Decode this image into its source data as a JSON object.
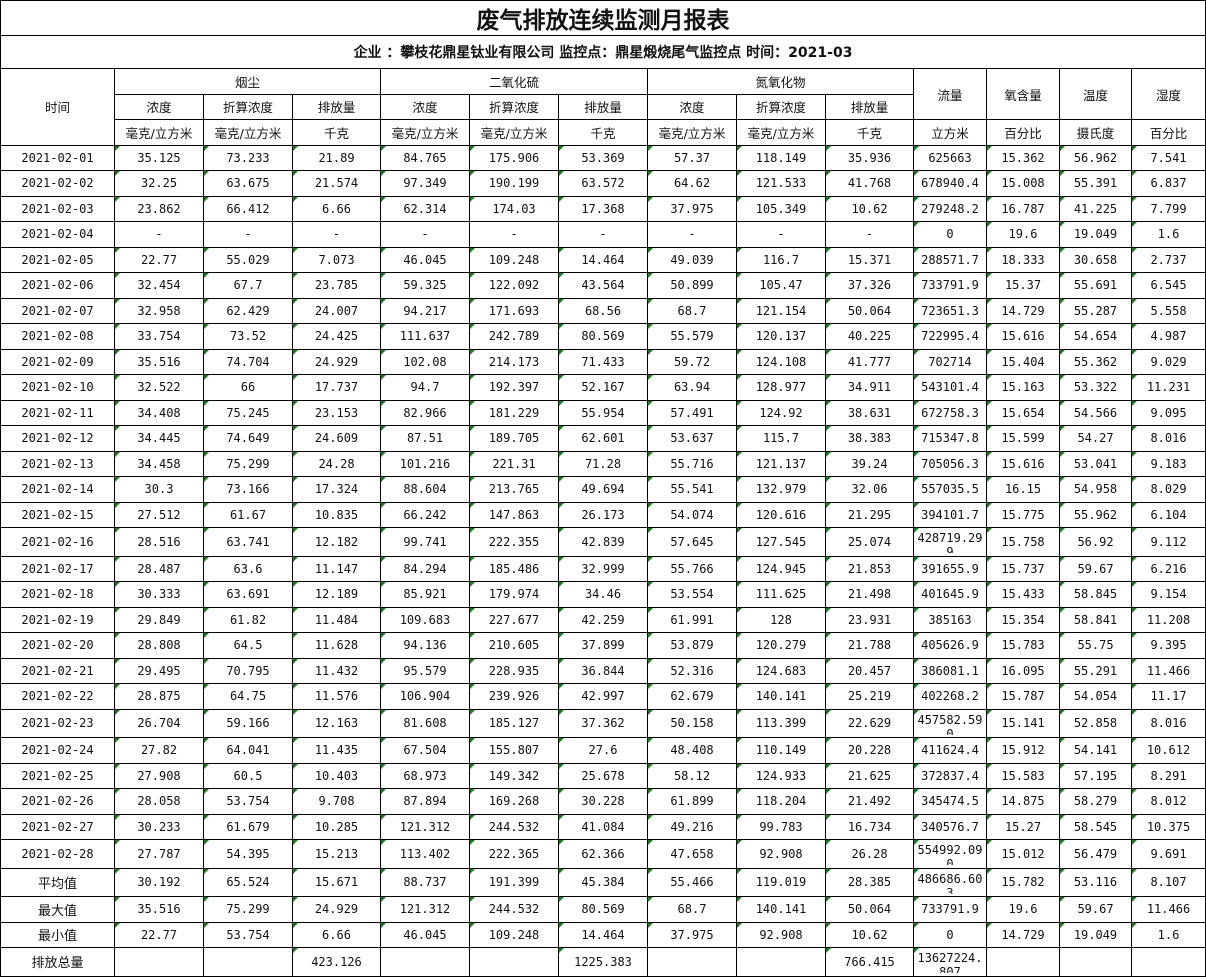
{
  "title": "废气排放连续监测月报表",
  "subtitle": "企业 ：攀枝花鼎星钛业有限公司 监控点：鼎星煅烧尾气监控点 时间：2021-03",
  "header": {
    "time": "时间",
    "groups": [
      "烟尘",
      "二氧化硫",
      "氮氧化物"
    ],
    "sub_cols": [
      "浓度",
      "折算浓度",
      "排放量"
    ],
    "units_conc": "毫克/立方米",
    "units_mass": "千克",
    "flow": "流量",
    "flow_unit": "立方米",
    "oxygen": "氧含量",
    "oxygen_unit": "百分比",
    "temperature": "温度",
    "temperature_unit": "摄氏度",
    "humidity": "湿度",
    "humidity_unit": "百分比"
  },
  "rows": [
    [
      "2021-02-01",
      "35.125",
      "73.233",
      "21.89",
      "84.765",
      "175.906",
      "53.369",
      "57.37",
      "118.149",
      "35.936",
      "625663",
      "15.362",
      "56.962",
      "7.541"
    ],
    [
      "2021-02-02",
      "32.25",
      "63.675",
      "21.574",
      "97.349",
      "190.199",
      "63.572",
      "64.62",
      "121.533",
      "41.768",
      "678940.4",
      "15.008",
      "55.391",
      "6.837"
    ],
    [
      "2021-02-03",
      "23.862",
      "66.412",
      "6.66",
      "62.314",
      "174.03",
      "17.368",
      "37.975",
      "105.349",
      "10.62",
      "279248.2",
      "16.787",
      "41.225",
      "7.799"
    ],
    [
      "2021-02-04",
      "-",
      "-",
      "-",
      "-",
      "-",
      "-",
      "-",
      "-",
      "-",
      "0",
      "19.6",
      "19.049",
      "1.6"
    ],
    [
      "2021-02-05",
      "22.77",
      "55.029",
      "7.073",
      "46.045",
      "109.248",
      "14.464",
      "49.039",
      "116.7",
      "15.371",
      "288571.7",
      "18.333",
      "30.658",
      "2.737"
    ],
    [
      "2021-02-06",
      "32.454",
      "67.7",
      "23.785",
      "59.325",
      "122.092",
      "43.564",
      "50.899",
      "105.47",
      "37.326",
      "733791.9",
      "15.37",
      "55.691",
      "6.545"
    ],
    [
      "2021-02-07",
      "32.958",
      "62.429",
      "24.007",
      "94.217",
      "171.693",
      "68.56",
      "68.7",
      "121.154",
      "50.064",
      "723651.3",
      "14.729",
      "55.287",
      "5.558"
    ],
    [
      "2021-02-08",
      "33.754",
      "73.52",
      "24.425",
      "111.637",
      "242.789",
      "80.569",
      "55.579",
      "120.137",
      "40.225",
      "722995.4",
      "15.616",
      "54.654",
      "4.987"
    ],
    [
      "2021-02-09",
      "35.516",
      "74.704",
      "24.929",
      "102.08",
      "214.173",
      "71.433",
      "59.72",
      "124.108",
      "41.777",
      "702714",
      "15.404",
      "55.362",
      "9.029"
    ],
    [
      "2021-02-10",
      "32.522",
      "66",
      "17.737",
      "94.7",
      "192.397",
      "52.167",
      "63.94",
      "128.977",
      "34.911",
      "543101.4",
      "15.163",
      "53.322",
      "11.231"
    ],
    [
      "2021-02-11",
      "34.408",
      "75.245",
      "23.153",
      "82.966",
      "181.229",
      "55.954",
      "57.491",
      "124.92",
      "38.631",
      "672758.3",
      "15.654",
      "54.566",
      "9.095"
    ],
    [
      "2021-02-12",
      "34.445",
      "74.649",
      "24.609",
      "87.51",
      "189.705",
      "62.601",
      "53.637",
      "115.7",
      "38.383",
      "715347.8",
      "15.599",
      "54.27",
      "8.016"
    ],
    [
      "2021-02-13",
      "34.458",
      "75.299",
      "24.28",
      "101.216",
      "221.31",
      "71.28",
      "55.716",
      "121.137",
      "39.24",
      "705056.3",
      "15.616",
      "53.041",
      "9.183"
    ],
    [
      "2021-02-14",
      "30.3",
      "73.166",
      "17.324",
      "88.604",
      "213.765",
      "49.694",
      "55.541",
      "132.979",
      "32.06",
      "557035.5",
      "16.15",
      "54.958",
      "8.029"
    ],
    [
      "2021-02-15",
      "27.512",
      "61.67",
      "10.835",
      "66.242",
      "147.863",
      "26.173",
      "54.074",
      "120.616",
      "21.295",
      "394101.7",
      "15.775",
      "55.962",
      "6.104"
    ],
    [
      "2021-02-16",
      "28.516",
      "63.741",
      "12.182",
      "99.741",
      "222.355",
      "42.839",
      "57.645",
      "127.545",
      "25.074",
      "428719.299",
      "15.758",
      "56.92",
      "9.112"
    ],
    [
      "2021-02-17",
      "28.487",
      "63.6",
      "11.147",
      "84.294",
      "185.486",
      "32.999",
      "55.766",
      "124.945",
      "21.853",
      "391655.9",
      "15.737",
      "59.67",
      "6.216"
    ],
    [
      "2021-02-18",
      "30.333",
      "63.691",
      "12.189",
      "85.921",
      "179.974",
      "34.46",
      "53.554",
      "111.625",
      "21.498",
      "401645.9",
      "15.433",
      "58.845",
      "9.154"
    ],
    [
      "2021-02-19",
      "29.849",
      "61.82",
      "11.484",
      "109.683",
      "227.677",
      "42.259",
      "61.991",
      "128",
      "23.931",
      "385163",
      "15.354",
      "58.841",
      "11.208"
    ],
    [
      "2021-02-20",
      "28.808",
      "64.5",
      "11.628",
      "94.136",
      "210.605",
      "37.899",
      "53.879",
      "120.279",
      "21.788",
      "405626.9",
      "15.783",
      "55.75",
      "9.395"
    ],
    [
      "2021-02-21",
      "29.495",
      "70.795",
      "11.432",
      "95.579",
      "228.935",
      "36.844",
      "52.316",
      "124.683",
      "20.457",
      "386081.1",
      "16.095",
      "55.291",
      "11.466"
    ],
    [
      "2021-02-22",
      "28.875",
      "64.75",
      "11.576",
      "106.904",
      "239.926",
      "42.997",
      "62.679",
      "140.141",
      "25.219",
      "402268.2",
      "15.787",
      "54.054",
      "11.17"
    ],
    [
      "2021-02-23",
      "26.704",
      "59.166",
      "12.163",
      "81.608",
      "185.127",
      "37.362",
      "50.158",
      "113.399",
      "22.629",
      "457582.590",
      "15.141",
      "52.858",
      "8.016"
    ],
    [
      "2021-02-24",
      "27.82",
      "64.041",
      "11.435",
      "67.504",
      "155.807",
      "27.6",
      "48.408",
      "110.149",
      "20.228",
      "411624.4",
      "15.912",
      "54.141",
      "10.612"
    ],
    [
      "2021-02-25",
      "27.908",
      "60.5",
      "10.403",
      "68.973",
      "149.342",
      "25.678",
      "58.12",
      "124.933",
      "21.625",
      "372837.4",
      "15.583",
      "57.195",
      "8.291"
    ],
    [
      "2021-02-26",
      "28.058",
      "53.754",
      "9.708",
      "87.894",
      "169.268",
      "30.228",
      "61.899",
      "118.204",
      "21.492",
      "345474.5",
      "14.875",
      "58.279",
      "8.012"
    ],
    [
      "2021-02-27",
      "30.233",
      "61.679",
      "10.285",
      "121.312",
      "244.532",
      "41.084",
      "49.216",
      "99.783",
      "16.734",
      "340576.7",
      "15.27",
      "58.545",
      "10.375"
    ],
    [
      "2021-02-28",
      "27.787",
      "54.395",
      "15.213",
      "113.402",
      "222.365",
      "62.366",
      "47.658",
      "92.908",
      "26.28",
      "554992.090",
      "15.012",
      "56.479",
      "9.691"
    ],
    [
      "平均值",
      "30.192",
      "65.524",
      "15.671",
      "88.737",
      "191.399",
      "45.384",
      "55.466",
      "119.019",
      "28.385",
      "486686.603",
      "15.782",
      "53.116",
      "8.107"
    ],
    [
      "最大值",
      "35.516",
      "75.299",
      "24.929",
      "121.312",
      "244.532",
      "80.569",
      "68.7",
      "140.141",
      "50.064",
      "733791.9",
      "19.6",
      "59.67",
      "11.466"
    ],
    [
      "最小值",
      "22.77",
      "53.754",
      "6.66",
      "46.045",
      "109.248",
      "14.464",
      "37.975",
      "92.908",
      "10.62",
      "0",
      "14.729",
      "19.049",
      "1.6"
    ],
    [
      "排放总量",
      "",
      "",
      "423.126",
      "",
      "",
      "1225.383",
      "",
      "",
      "766.415",
      "13627224.807",
      "",
      "",
      ""
    ]
  ]
}
